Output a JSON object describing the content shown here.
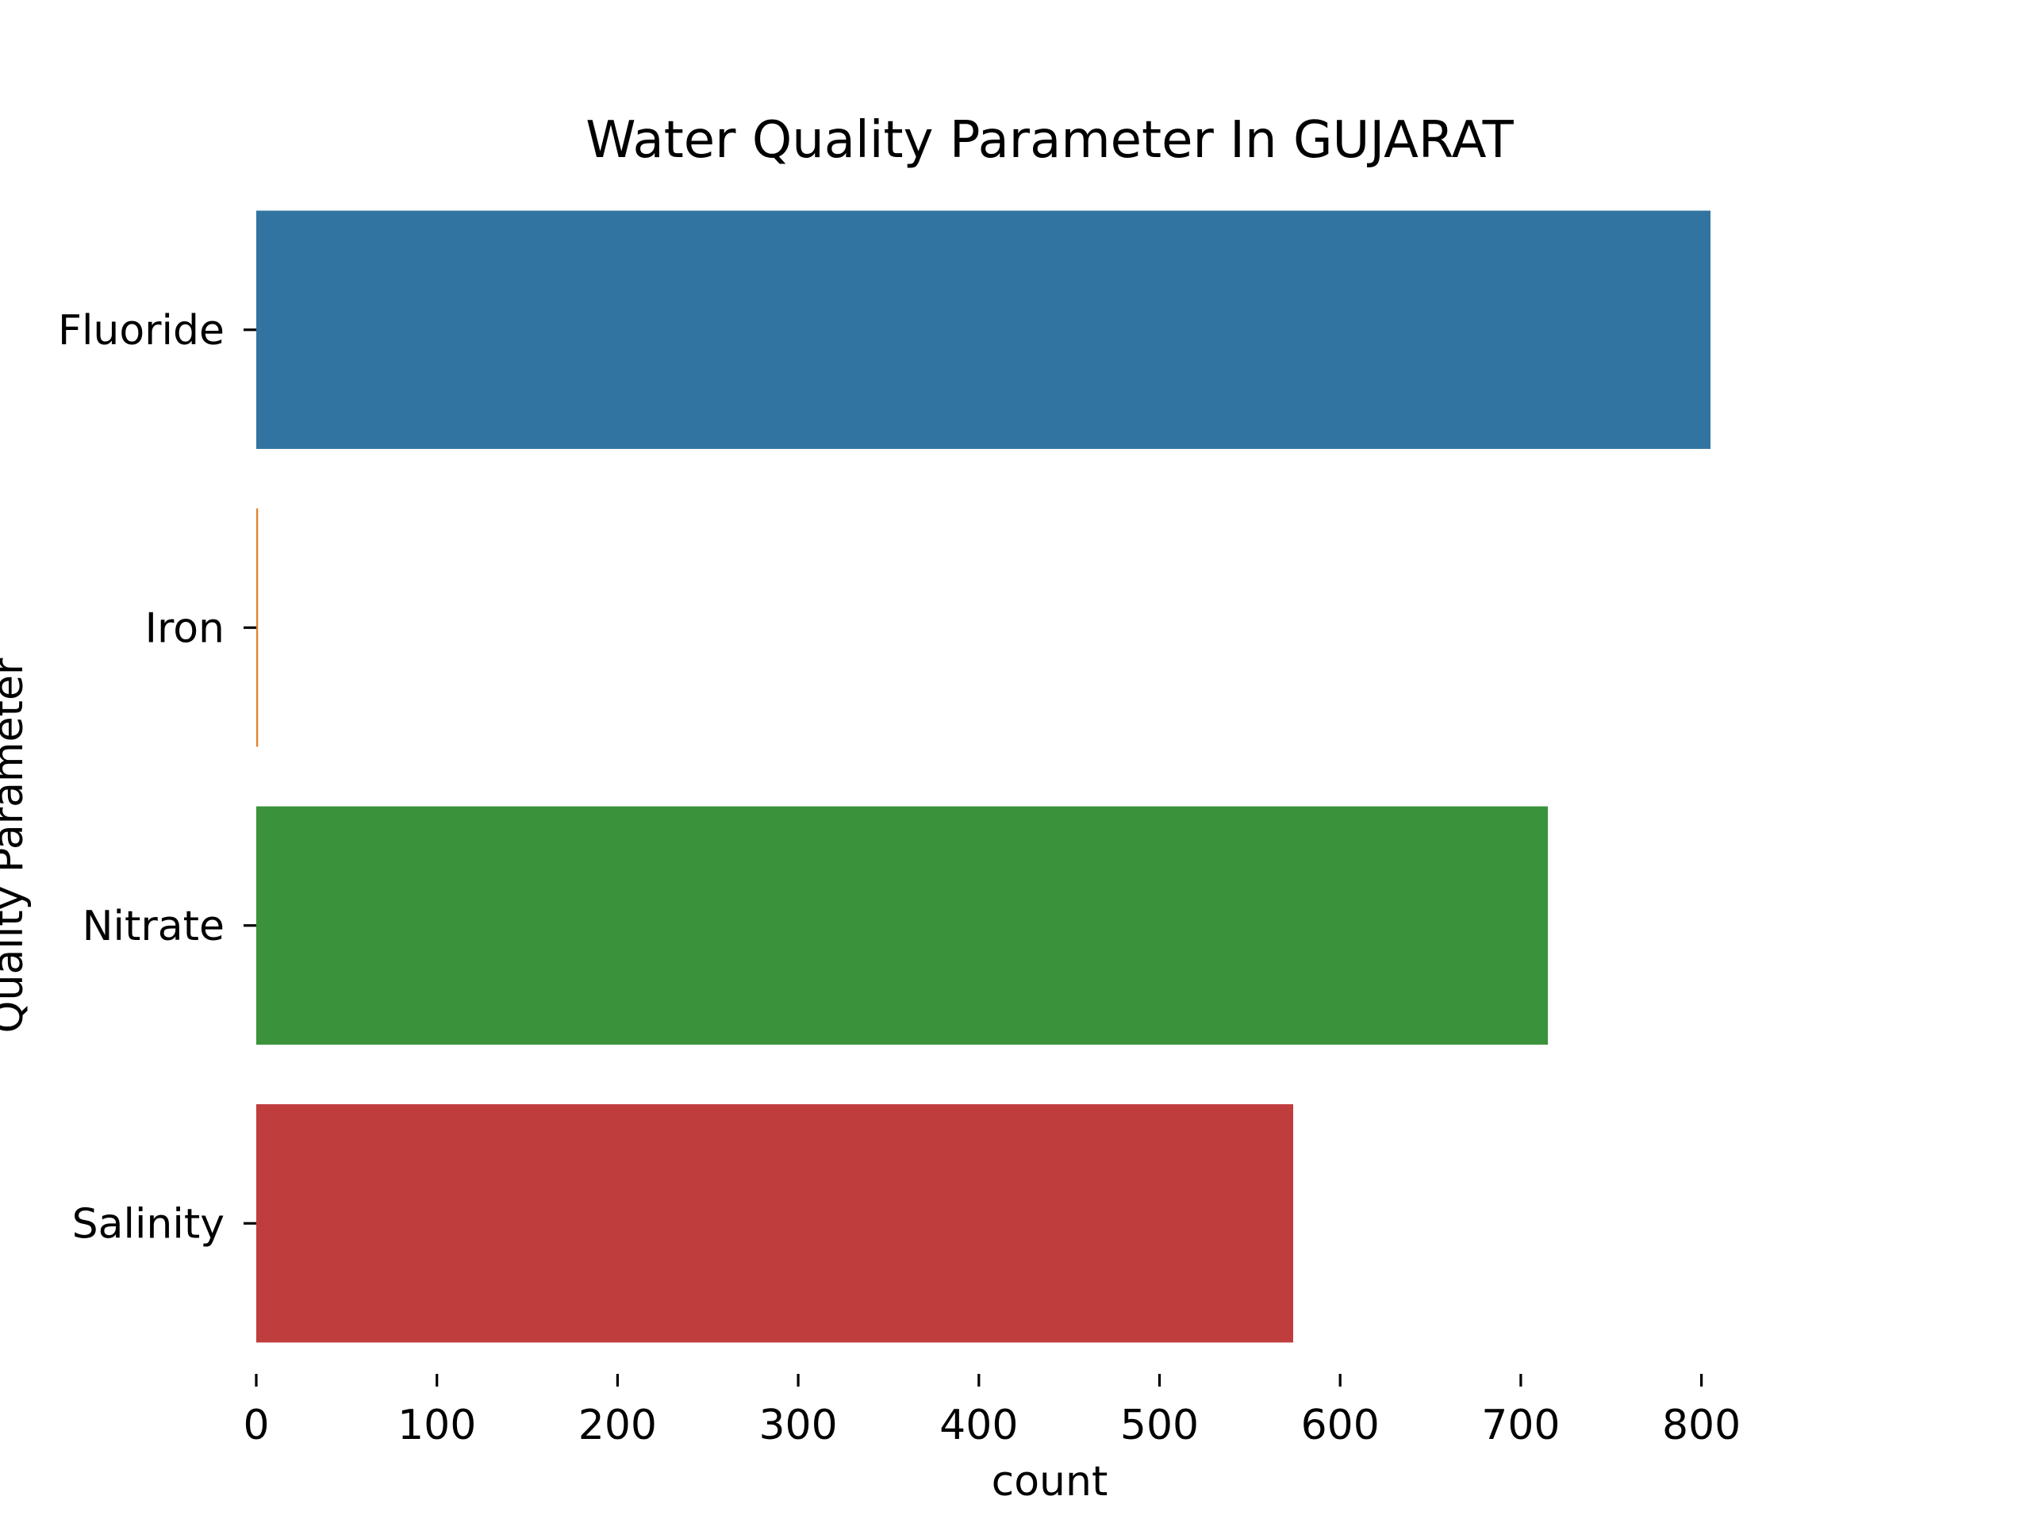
{
  "chart_data": {
    "type": "bar",
    "orientation": "horizontal",
    "title": "Water Quality Parameter In GUJARAT",
    "xlabel": "count",
    "ylabel": "Quality Parameter",
    "categories": [
      "Fluoride",
      "Iron",
      "Nitrate",
      "Salinity"
    ],
    "values": [
      805,
      1,
      715,
      574
    ],
    "colors": [
      "#3274a1",
      "#e1812c",
      "#3a923a",
      "#c03d3e"
    ],
    "xlim": [
      0,
      870
    ],
    "xticks": [
      0,
      100,
      200,
      300,
      400,
      500,
      600,
      700,
      800
    ],
    "grid": false,
    "legend": "none"
  }
}
